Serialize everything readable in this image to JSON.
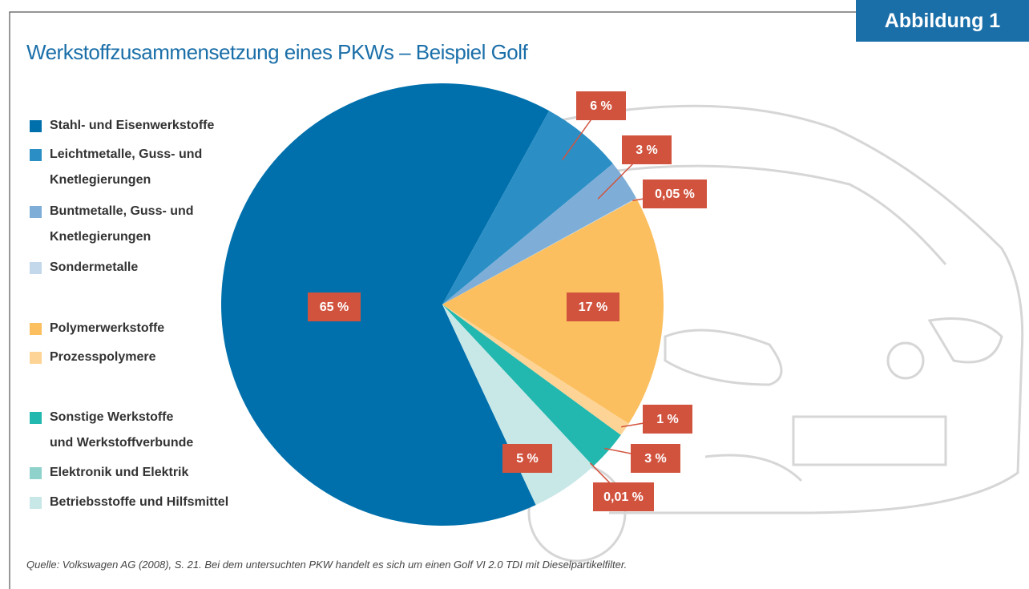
{
  "badge": "Abbildung 1",
  "chart_data": {
    "type": "pie",
    "title": "Werkstoffzusammensetzung eines PKWs – Beispiel Golf",
    "series": [
      {
        "name": "Stahl- und Eisenwerkstoffe",
        "color": "#0070ad"
      },
      {
        "name": "Leichtmetalle, Guss- und\nKnetlegierungen",
        "color": "#2b8fc5"
      },
      {
        "name": "Buntmetalle, Guss- und\nKnetlegierungen",
        "color": "#7eaed8"
      },
      {
        "name": "Sondermetalle",
        "color": "#c3d8ea"
      },
      {
        "name": "Polymerwerkstoffe",
        "color": "#fbbf5f"
      },
      {
        "name": "Prozesspolymere",
        "color": "#fdd495"
      },
      {
        "name": "Sonstige Werkstoffe\nund Werkstoffverbunde",
        "color": "#22b8af"
      },
      {
        "name": "Elektronik und Elektrik",
        "color": "#8fd2cb"
      },
      {
        "name": "Betriebsstoffe und Hilfsmittel",
        "color": "#c8e7e7"
      }
    ],
    "values": [
      65,
      6,
      3,
      0.05,
      17,
      1,
      3,
      0.01,
      5
    ],
    "value_labels": [
      "65 %",
      "6 %",
      "3 %",
      "0,05 %",
      "17 %",
      "1 %",
      "3 %",
      "0,01 %",
      "5 %"
    ],
    "source": "Quelle: Volkswagen AG (2008), S. 21. Bei dem untersuchten PKW handelt es sich um einen Golf VI 2.0 TDI mit Dieselpartikelfilter."
  }
}
